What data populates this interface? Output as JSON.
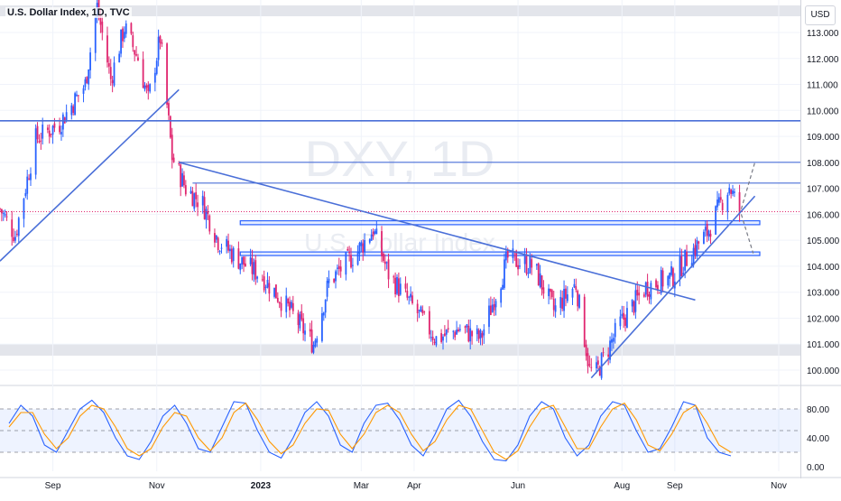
{
  "header": {
    "title": "U.S. Dollar Index, 1D, TVC",
    "currency": "USD"
  },
  "watermark": {
    "symbol": "DXY, 1D",
    "name": "U.S. Dollar Index"
  },
  "colors": {
    "up": "#2962ff",
    "down": "#e0266f",
    "trendline": "#4a6fd8",
    "grid": "#f0f3fa",
    "stoch_k": "#2962ff",
    "stoch_d": "#ff9800"
  },
  "chart_data": [
    {
      "type": "candlestick",
      "title": "U.S. Dollar Index, 1D, TVC",
      "unit": "USD",
      "ylim": [
        99.5,
        114.2
      ],
      "y_ticks": [
        "113.000",
        "112.000",
        "111.000",
        "110.000",
        "109.000",
        "108.000",
        "107.000",
        "106.000",
        "105.000",
        "104.000",
        "103.000",
        "102.000",
        "101.000",
        "100.000"
      ],
      "x_ticks": [
        "Sep",
        "Nov",
        "2023",
        "Mar",
        "Apr",
        "Jun",
        "Aug",
        "Sep",
        "Nov"
      ],
      "path": [
        {
          "date": "2022-08-01",
          "close": 106.2
        },
        {
          "date": "2022-08-10",
          "close": 105.2
        },
        {
          "date": "2022-08-22",
          "close": 108.9
        },
        {
          "date": "2022-09-05",
          "close": 109.5
        },
        {
          "date": "2022-09-20",
          "close": 111.0
        },
        {
          "date": "2022-09-27",
          "close": 114.0
        },
        {
          "date": "2022-10-05",
          "close": 111.2
        },
        {
          "date": "2022-10-13",
          "close": 113.2
        },
        {
          "date": "2022-10-21",
          "close": 112.0
        },
        {
          "date": "2022-10-27",
          "close": 110.4
        },
        {
          "date": "2022-11-03",
          "close": 112.8
        },
        {
          "date": "2022-11-10",
          "close": 108.2
        },
        {
          "date": "2022-11-18",
          "close": 107.0
        },
        {
          "date": "2022-11-28",
          "close": 106.4
        },
        {
          "date": "2022-12-07",
          "close": 105.0
        },
        {
          "date": "2022-12-20",
          "close": 104.2
        },
        {
          "date": "2023-01-02",
          "close": 103.6
        },
        {
          "date": "2023-01-18",
          "close": 102.3
        },
        {
          "date": "2023-02-01",
          "close": 101.0
        },
        {
          "date": "2023-02-10",
          "close": 103.4
        },
        {
          "date": "2023-02-27",
          "close": 104.6
        },
        {
          "date": "2023-03-08",
          "close": 105.4
        },
        {
          "date": "2023-03-17",
          "close": 103.7
        },
        {
          "date": "2023-04-03",
          "close": 102.2
        },
        {
          "date": "2023-04-14",
          "close": 101.2
        },
        {
          "date": "2023-04-28",
          "close": 101.6
        },
        {
          "date": "2023-05-10",
          "close": 101.2
        },
        {
          "date": "2023-05-26",
          "close": 104.3
        },
        {
          "date": "2023-06-10",
          "close": 104.0
        },
        {
          "date": "2023-06-22",
          "close": 102.3
        },
        {
          "date": "2023-07-05",
          "close": 103.3
        },
        {
          "date": "2023-07-13",
          "close": 100.0
        },
        {
          "date": "2023-07-17",
          "close": 99.9
        },
        {
          "date": "2023-07-31",
          "close": 101.8
        },
        {
          "date": "2023-08-15",
          "close": 103.2
        },
        {
          "date": "2023-08-31",
          "close": 103.6
        },
        {
          "date": "2023-09-08",
          "close": 104.3
        },
        {
          "date": "2023-09-20",
          "close": 105.3
        },
        {
          "date": "2023-10-03",
          "close": 107.1
        },
        {
          "date": "2023-10-09",
          "close": 106.1
        }
      ],
      "horizontal_levels": [
        109.6,
        108.0,
        107.2
      ],
      "support_zones": [
        [
          105.6,
          105.75
        ],
        [
          104.45,
          104.55
        ]
      ],
      "trendlines": [
        {
          "from": {
            "date": "2022-08-01",
            "price": 104.2
          },
          "to": {
            "date": "2022-11-14",
            "price": 110.8
          }
        },
        {
          "from": {
            "date": "2022-11-14",
            "price": 108.0
          },
          "to": {
            "date": "2023-09-13",
            "price": 102.7
          }
        },
        {
          "from": {
            "date": "2023-07-14",
            "price": 99.7
          },
          "to": {
            "date": "2023-10-18",
            "price": 106.7
          }
        }
      ],
      "projections": [
        {
          "from": {
            "date": "2023-10-10",
            "price": 106.2
          },
          "to": {
            "date": "2023-10-18",
            "price": 108.0
          }
        },
        {
          "from": {
            "date": "2023-10-10",
            "price": 106.0
          },
          "to": {
            "date": "2023-10-17",
            "price": 104.5
          }
        }
      ],
      "current_price_line": 106.1
    },
    {
      "type": "line",
      "title": "Stochastic",
      "ylim": [
        0,
        100
      ],
      "y_ticks": [
        "80.00",
        "40.00",
        "0.00"
      ],
      "bands": [
        20,
        50,
        80
      ],
      "series": [
        {
          "values": [
            60,
            85,
            70,
            30,
            20,
            50,
            80,
            92,
            75,
            40,
            15,
            10,
            35,
            70,
            85,
            60,
            25,
            20,
            55,
            90,
            88,
            50,
            20,
            12,
            40,
            75,
            90,
            70,
            30,
            20,
            60,
            85,
            88,
            65,
            30,
            15,
            45,
            80,
            92,
            70,
            35,
            10,
            8,
            30,
            70,
            90,
            80,
            40,
            15,
            30,
            70,
            90,
            85,
            50,
            20,
            25,
            55,
            90,
            85,
            40,
            20,
            15
          ]
        },
        {
          "values": [
            55,
            75,
            75,
            45,
            25,
            40,
            70,
            85,
            80,
            55,
            25,
            15,
            25,
            55,
            75,
            70,
            40,
            22,
            40,
            75,
            88,
            65,
            35,
            18,
            30,
            60,
            80,
            78,
            45,
            25,
            45,
            75,
            85,
            75,
            45,
            22,
            35,
            65,
            85,
            80,
            50,
            20,
            10,
            22,
            55,
            80,
            85,
            55,
            25,
            25,
            55,
            80,
            88,
            65,
            30,
            22,
            45,
            75,
            85,
            60,
            30,
            20
          ]
        }
      ]
    }
  ]
}
